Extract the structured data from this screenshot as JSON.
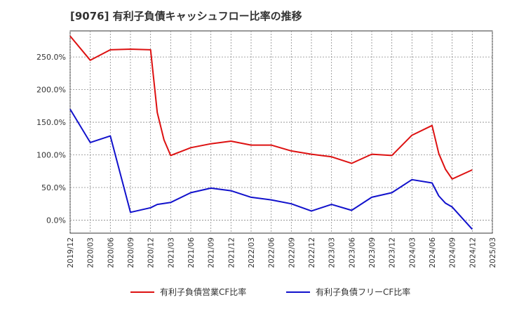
{
  "chart_data": {
    "type": "line",
    "title": "[9076]  有利子負債キャッシュフロー比率の推移",
    "x_ticks": [
      "2019/12",
      "2020/03",
      "2020/06",
      "2020/09",
      "2020/12",
      "2021/03",
      "2021/06",
      "2021/09",
      "2021/12",
      "2022/03",
      "2022/06",
      "2022/09",
      "2022/12",
      "2023/03",
      "2023/06",
      "2023/09",
      "2023/12",
      "2024/03",
      "2024/06",
      "2024/09",
      "2024/12",
      "2025/03"
    ],
    "y_ticks": [
      "0.0%",
      "50.0%",
      "100.0%",
      "150.0%",
      "200.0%",
      "250.0%"
    ],
    "y_tick_values": [
      0,
      50,
      100,
      150,
      200,
      250
    ],
    "ylim": [
      -20,
      290
    ],
    "grid": true,
    "legend_position": "bottom",
    "series": [
      {
        "name": "有利子負債営業CF比率",
        "color": "#dd1111",
        "points": [
          [
            "2019/12",
            282
          ],
          [
            "2020/03",
            245
          ],
          [
            "2020/06",
            261
          ],
          [
            "2020/09",
            262
          ],
          [
            "2020/12",
            261
          ],
          [
            "2021/01",
            165
          ],
          [
            "2021/02",
            123
          ],
          [
            "2021/03",
            99
          ],
          [
            "2021/06",
            111
          ],
          [
            "2021/09",
            117
          ],
          [
            "2021/12",
            121
          ],
          [
            "2022/03",
            115
          ],
          [
            "2022/06",
            115
          ],
          [
            "2022/09",
            106
          ],
          [
            "2022/12",
            101
          ],
          [
            "2023/03",
            97
          ],
          [
            "2023/06",
            87
          ],
          [
            "2023/09",
            101
          ],
          [
            "2023/12",
            99
          ],
          [
            "2024/03",
            130
          ],
          [
            "2024/06",
            145
          ],
          [
            "2024/07",
            102
          ],
          [
            "2024/08",
            78
          ],
          [
            "2024/09",
            63
          ],
          [
            "2024/12",
            77
          ]
        ]
      },
      {
        "name": "有利子負債フリーCF比率",
        "color": "#1111cc",
        "points": [
          [
            "2019/12",
            170
          ],
          [
            "2020/03",
            119
          ],
          [
            "2020/06",
            129
          ],
          [
            "2020/09",
            12
          ],
          [
            "2020/12",
            19
          ],
          [
            "2021/01",
            24
          ],
          [
            "2021/03",
            27
          ],
          [
            "2021/06",
            42
          ],
          [
            "2021/09",
            49
          ],
          [
            "2021/12",
            45
          ],
          [
            "2022/03",
            35
          ],
          [
            "2022/06",
            31
          ],
          [
            "2022/09",
            25
          ],
          [
            "2022/12",
            14
          ],
          [
            "2023/03",
            24
          ],
          [
            "2023/06",
            15
          ],
          [
            "2023/09",
            35
          ],
          [
            "2023/12",
            42
          ],
          [
            "2024/03",
            62
          ],
          [
            "2024/06",
            57
          ],
          [
            "2024/07",
            37
          ],
          [
            "2024/08",
            26
          ],
          [
            "2024/09",
            20
          ],
          [
            "2024/12",
            -14
          ]
        ]
      }
    ]
  }
}
